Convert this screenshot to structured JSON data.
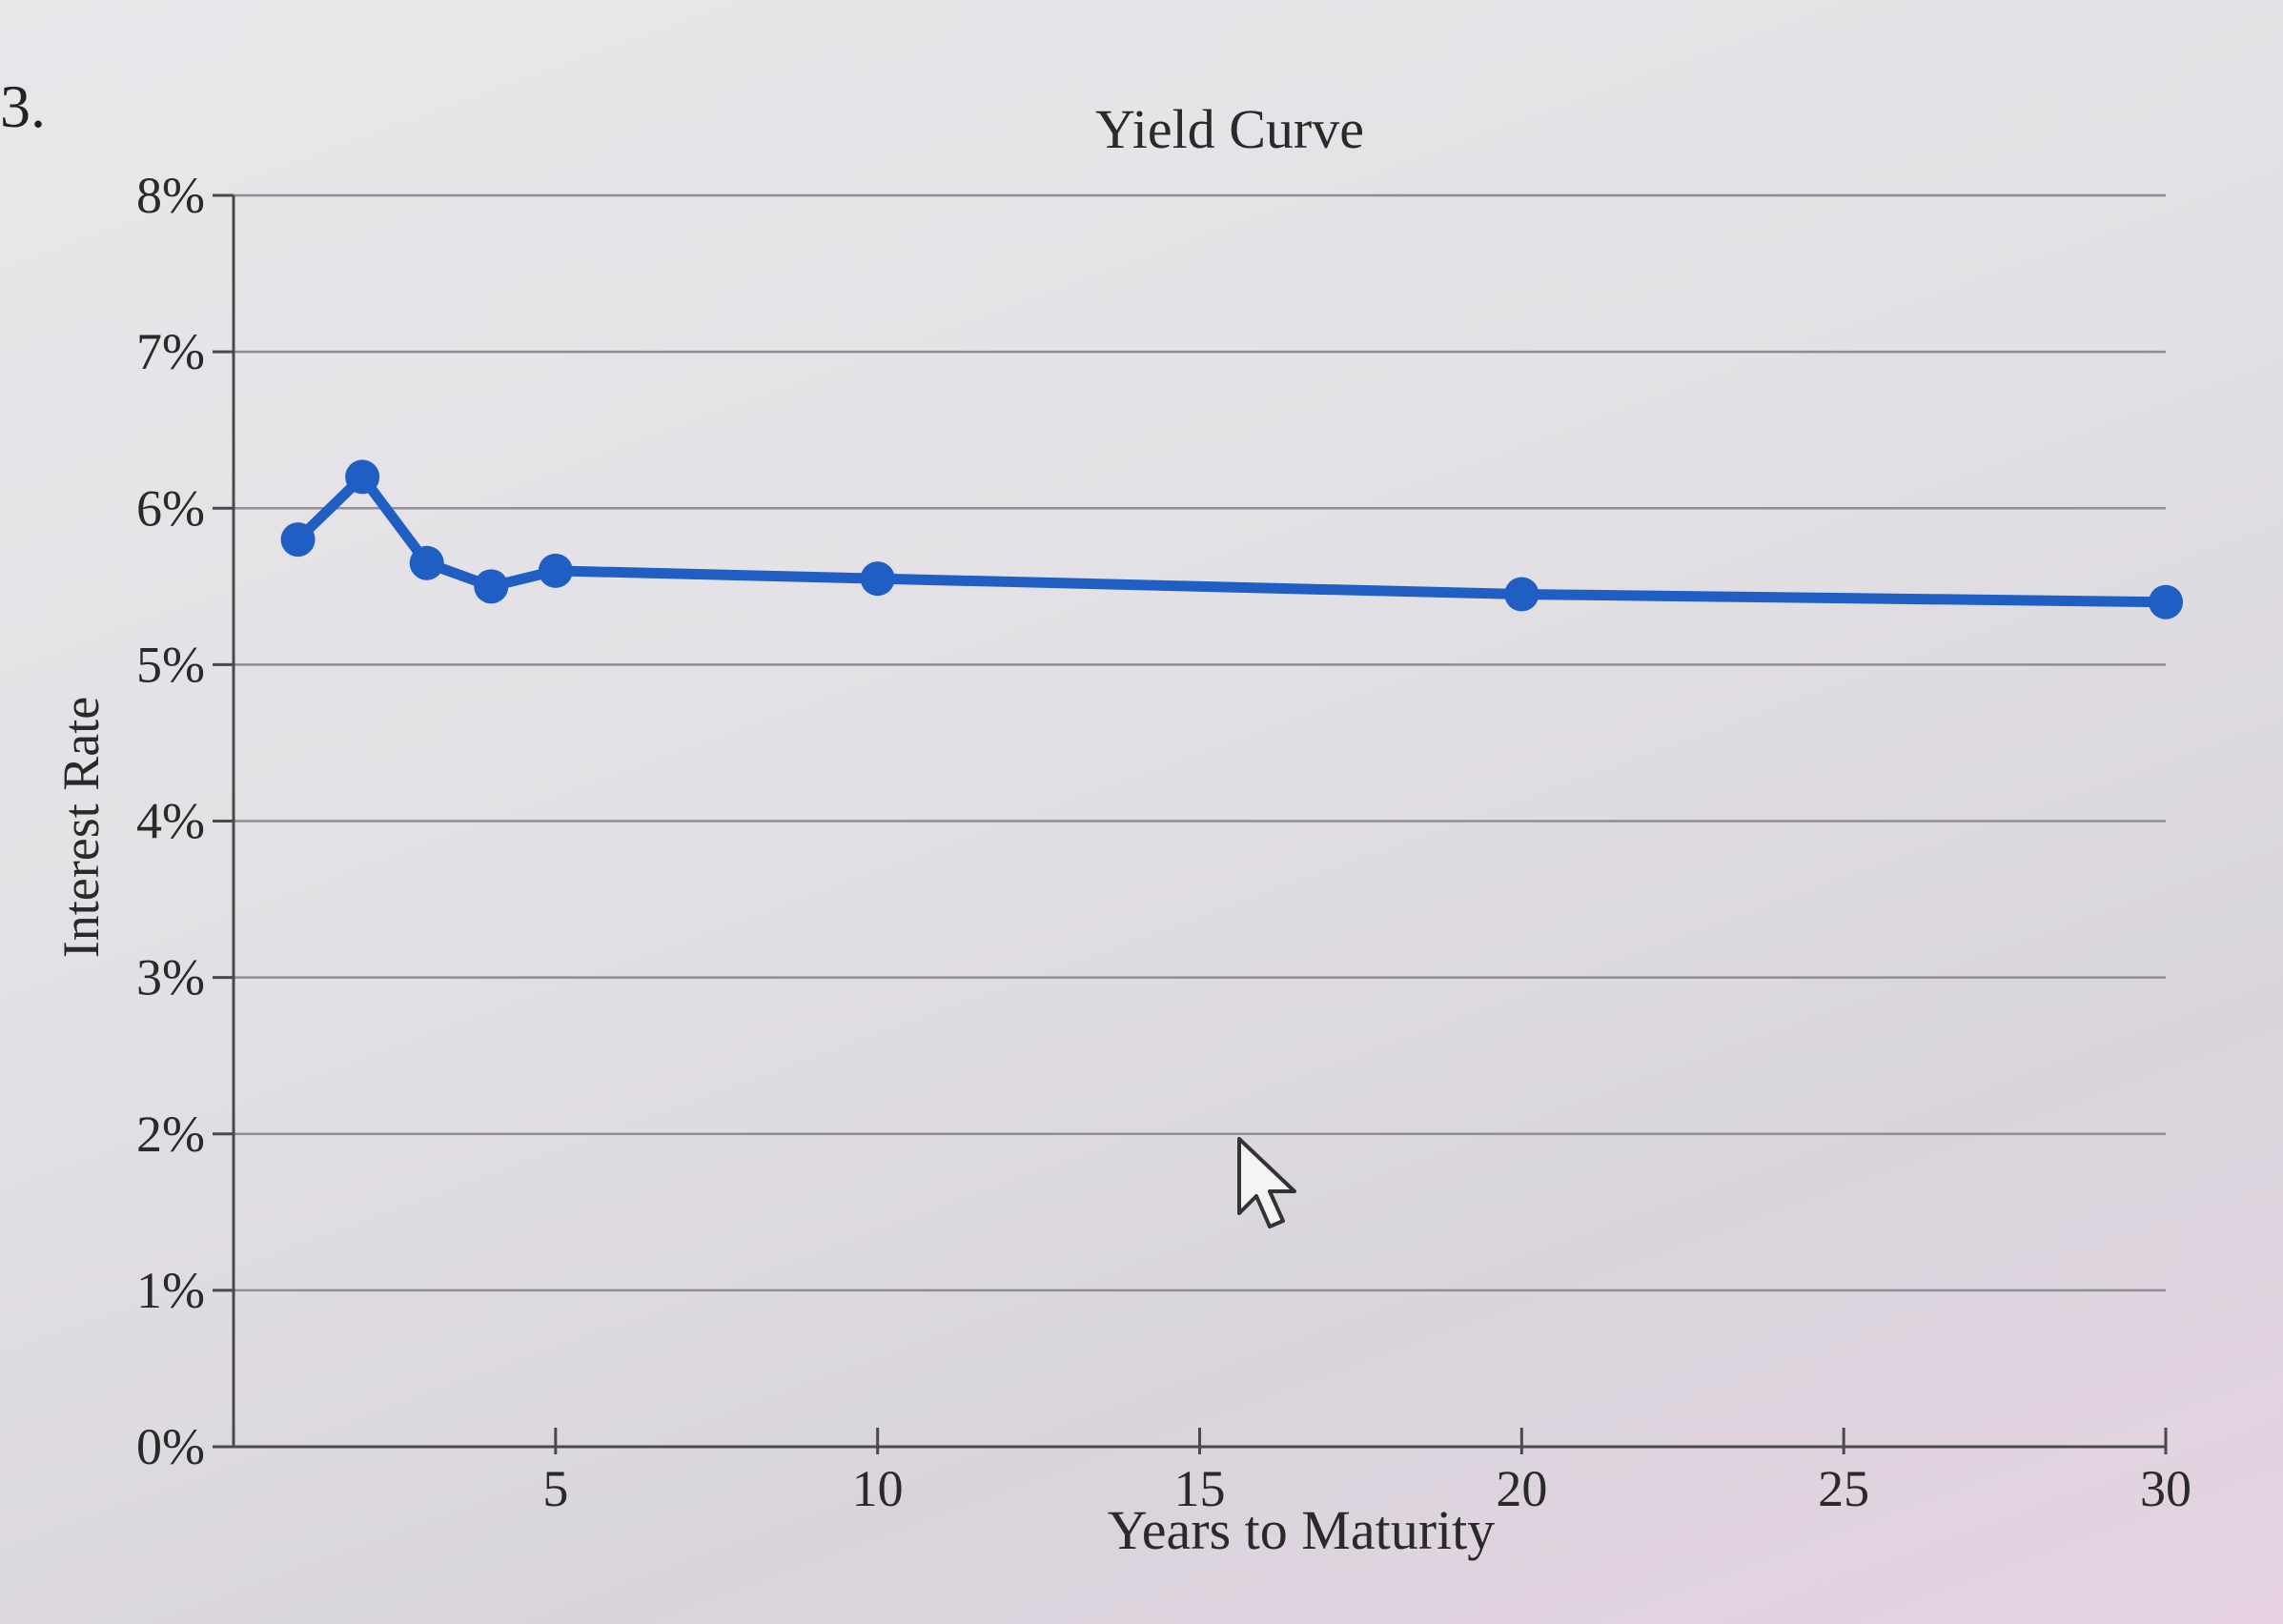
{
  "question_number": "3.",
  "colors": {
    "series": "#1f5fc4",
    "grid": "#8e8e94",
    "axis": "#4a4a4a",
    "text": "#2a2a2a"
  },
  "chart_data": {
    "type": "line",
    "title": "Yield Curve",
    "xlabel": "Years to Maturity",
    "ylabel": "Interest Rate",
    "xlim": [
      0,
      30
    ],
    "ylim": [
      0,
      8
    ],
    "xticks": [
      5,
      10,
      15,
      20,
      25,
      30
    ],
    "xtick_labels": [
      "5",
      "10",
      "15",
      "20",
      "25",
      "30"
    ],
    "yticks": [
      0,
      1,
      2,
      3,
      4,
      5,
      6,
      7,
      8
    ],
    "ytick_labels": [
      "0%",
      "1%",
      "2%",
      "3%",
      "4%",
      "5%",
      "6%",
      "7%",
      "8%"
    ],
    "grid": true,
    "series": [
      {
        "name": "Yield Curve",
        "x": [
          1,
          2,
          3,
          4,
          5,
          10,
          20,
          30
        ],
        "y": [
          5.8,
          6.2,
          5.65,
          5.5,
          5.6,
          5.55,
          5.45,
          5.4
        ]
      }
    ]
  }
}
